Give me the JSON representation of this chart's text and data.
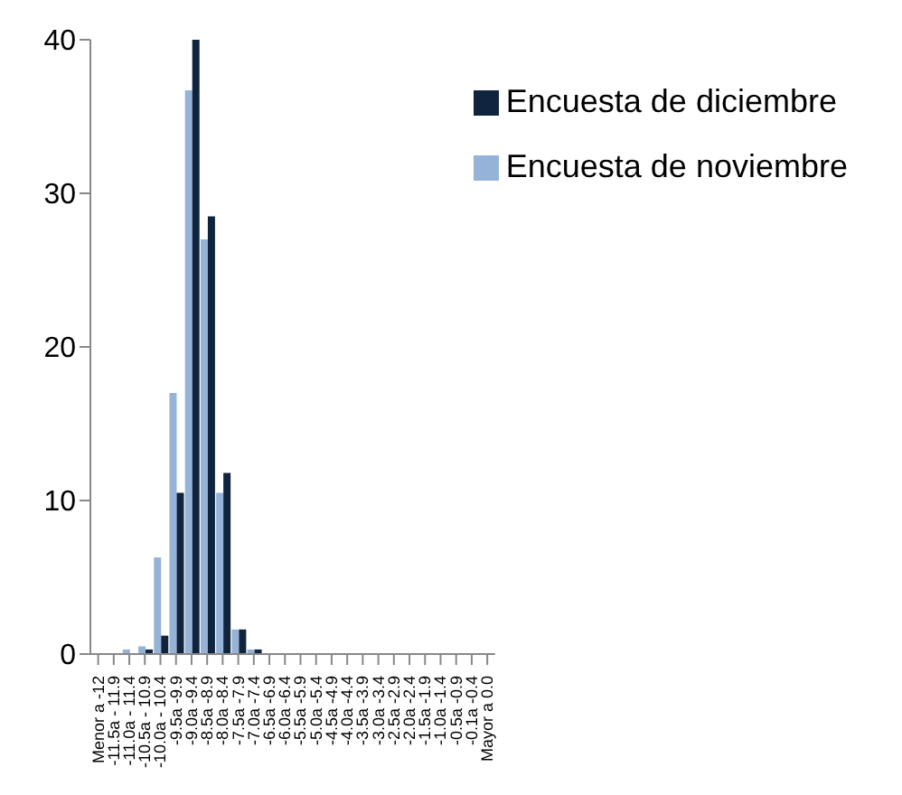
{
  "chart_data": {
    "type": "bar",
    "categories": [
      "Menor a -12",
      "-11.5a - 11.9",
      "-11.0a - 11.4",
      "-10.5a - 10.9",
      "-10.0a - 10.4",
      "-9.5a -9.9",
      "-9.0a -9.4",
      "-8.5a -8.9",
      "-8.0a -8.4",
      "-7.5a -7.9",
      "-7.0a -7.4",
      "-6.5a -6.9",
      "-6.0a -6.4",
      "-5.5a -5.9",
      "-5.0a -5.4",
      "-4.5a -4.9",
      "-4.0a -4.4",
      "-3.5a -3.9",
      "-3.0a -3.4",
      "-2.5a -2.9",
      "-2.0a -2.4",
      "-1.5a -1.9",
      "-1.0a -1.4",
      "-0.5a -0.9",
      "-0.1a -0.4",
      "Mayor a 0.0"
    ],
    "series": [
      {
        "name": "Encuesta de noviembre",
        "color": "#95b3d7",
        "values": [
          0,
          0,
          0.3,
          0.5,
          6.3,
          17,
          36.7,
          27,
          10.5,
          1.6,
          0.3,
          0,
          0,
          0,
          0,
          0,
          0,
          0,
          0,
          0,
          0,
          0,
          0,
          0,
          0,
          0
        ]
      },
      {
        "name": "Encuesta de diciembre",
        "color": "#10243e",
        "values": [
          0,
          0,
          0,
          0.3,
          1.2,
          10.5,
          40,
          28.5,
          11.8,
          1.6,
          0.3,
          0,
          0,
          0,
          0,
          0,
          0,
          0,
          0,
          0,
          0,
          0,
          0,
          0,
          0,
          0
        ]
      }
    ],
    "ylim": [
      0,
      40
    ],
    "yticks": [
      0,
      10,
      20,
      30,
      40
    ],
    "grid": false,
    "legend": "top right"
  }
}
